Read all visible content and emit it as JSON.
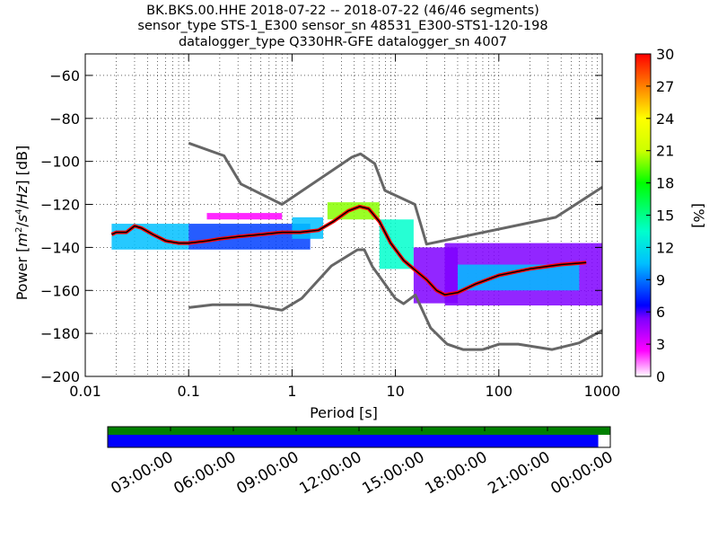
{
  "title_lines": [
    "BK.BKS.00.HHE   2018-07-22 -- 2018-07-22  (46/46 segments)",
    "sensor_type STS-1_E300 sensor_sn 48531_E300-STS1-120-198",
    "datalogger_type Q330HR-GFE datalogger_sn 4007"
  ],
  "chart_data": {
    "type": "heatmap",
    "title": "BK.BKS.00.HHE   2018-07-22 -- 2018-07-22  (46/46 segments)",
    "xlabel": "Period [s]",
    "ylabel": "Power [m^2/s^4/Hz] [dB]",
    "x_scale": "log",
    "xlim": [
      0.01,
      1000
    ],
    "ylim": [
      -200,
      -50
    ],
    "x_ticks": [
      0.01,
      0.1,
      1,
      10,
      100,
      1000
    ],
    "x_tick_labels": [
      "0.01",
      "0.1",
      "1",
      "10",
      "100",
      "1000"
    ],
    "y_ticks": [
      -200,
      -180,
      -160,
      -140,
      -120,
      -100,
      -80,
      -60
    ],
    "y_tick_labels": [
      "−200",
      "−180",
      "−160",
      "−140",
      "−120",
      "−100",
      "−80",
      "−60"
    ],
    "grid": "dotted",
    "colorbar": {
      "label": "[%]",
      "range": [
        0,
        30
      ],
      "ticks": [
        0,
        3,
        6,
        9,
        12,
        15,
        18,
        21,
        24,
        27,
        30
      ],
      "colormap": [
        "#ffffff",
        "#ff00ff",
        "#7f00ff",
        "#0000ff",
        "#00bfff",
        "#00ffcc",
        "#00ff00",
        "#ccff00",
        "#ffff00",
        "#ff8000",
        "#ff0000"
      ]
    },
    "nhnm": [
      [
        0.1,
        -168
      ],
      [
        0.17,
        -166.7
      ],
      [
        0.4,
        -166.7
      ],
      [
        0.8,
        -169.2
      ],
      [
        1.24,
        -163.7
      ],
      [
        2.4,
        -148.6
      ],
      [
        4.3,
        -141.1
      ],
      [
        5.0,
        -141.1
      ],
      [
        6.0,
        -149
      ],
      [
        10,
        -163.8
      ],
      [
        12,
        -166.2
      ],
      [
        15.6,
        -162.1
      ],
      [
        21.9,
        -177.5
      ],
      [
        31.6,
        -185
      ],
      [
        45,
        -187.5
      ],
      [
        70,
        -187.5
      ],
      [
        101,
        -185
      ],
      [
        154,
        -185
      ],
      [
        328,
        -187.5
      ],
      [
        600,
        -184.4
      ],
      [
        1000,
        -178.6
      ]
    ],
    "nlnm": [
      [
        0.1,
        -91.5
      ],
      [
        0.22,
        -97.4
      ],
      [
        0.32,
        -110.5
      ],
      [
        0.8,
        -120
      ],
      [
        3.8,
        -98
      ],
      [
        4.6,
        -96.5
      ],
      [
        6.3,
        -101
      ],
      [
        7.9,
        -113.5
      ],
      [
        15.4,
        -120
      ],
      [
        20,
        -138.5
      ],
      [
        354.8,
        -126
      ],
      [
        1000,
        -112
      ]
    ],
    "median_curve": [
      [
        0.018,
        -134
      ],
      [
        0.02,
        -133
      ],
      [
        0.025,
        -133
      ],
      [
        0.03,
        -130
      ],
      [
        0.035,
        -131
      ],
      [
        0.045,
        -134
      ],
      [
        0.06,
        -137
      ],
      [
        0.08,
        -138
      ],
      [
        0.1,
        -138
      ],
      [
        0.15,
        -137
      ],
      [
        0.2,
        -136
      ],
      [
        0.3,
        -135
      ],
      [
        0.5,
        -134
      ],
      [
        0.8,
        -133
      ],
      [
        1.2,
        -133
      ],
      [
        1.8,
        -132
      ],
      [
        2.5,
        -128
      ],
      [
        3.5,
        -123
      ],
      [
        4.5,
        -121
      ],
      [
        5.5,
        -122
      ],
      [
        7,
        -128
      ],
      [
        9,
        -138
      ],
      [
        12,
        -146
      ],
      [
        15,
        -150
      ],
      [
        20,
        -155
      ],
      [
        25,
        -160
      ],
      [
        30,
        -162
      ],
      [
        40,
        -161
      ],
      [
        60,
        -157
      ],
      [
        100,
        -153
      ],
      [
        200,
        -150
      ],
      [
        400,
        -148
      ],
      [
        700,
        -147
      ]
    ],
    "percent_band": [
      {
        "x": [
          0.018,
          0.1
        ],
        "y": [
          -141,
          -129
        ],
        "percent": 12
      },
      {
        "x": [
          0.1,
          1.5
        ],
        "y": [
          -141,
          -129
        ],
        "percent": 10
      },
      {
        "x": [
          0.15,
          0.8
        ],
        "y": [
          -127,
          -124
        ],
        "percent": 3
      },
      {
        "x": [
          1,
          2
        ],
        "y": [
          -136,
          -126
        ],
        "percent": 12
      },
      {
        "x": [
          2.2,
          7
        ],
        "y": [
          -127,
          -119
        ],
        "percent": 20
      },
      {
        "x": [
          7,
          15
        ],
        "y": [
          -150,
          -127
        ],
        "percent": 15
      },
      {
        "x": [
          15,
          40
        ],
        "y": [
          -166,
          -140
        ],
        "percent": 6
      },
      {
        "x": [
          30,
          1000
        ],
        "y": [
          -167,
          -138
        ],
        "percent": 6
      },
      {
        "x": [
          40,
          600
        ],
        "y": [
          -160,
          -148
        ],
        "percent": 12
      }
    ]
  },
  "timeline": {
    "tick_labels": [
      "03:00:00",
      "06:00:00",
      "09:00:00",
      "12:00:00",
      "15:00:00",
      "18:00:00",
      "21:00:00",
      "00:00:00"
    ],
    "fraction_blue": 0.976,
    "colors": {
      "top": "#008000",
      "bottom": "#0000ff"
    }
  }
}
